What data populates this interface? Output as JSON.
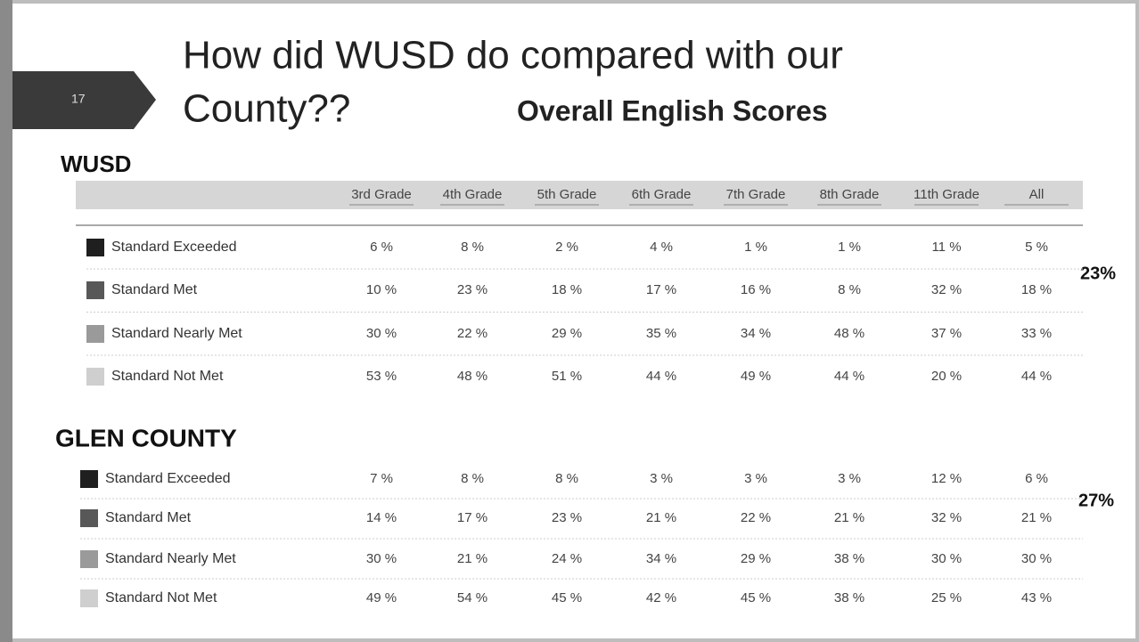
{
  "slide_number": "17",
  "title": "How did WUSD do compared with our County??",
  "subtitle": "Overall English Scores",
  "columns": [
    "3rd Grade",
    "4th Grade",
    "5th Grade",
    "6th Grade",
    "7th Grade",
    "8th Grade",
    "11th Grade",
    "All"
  ],
  "wusd": {
    "label": "WUSD",
    "note": "23%",
    "rows": [
      {
        "label": "Standard Exceeded",
        "values": [
          "6 %",
          "8 %",
          "2 %",
          "4 %",
          "1 %",
          "1 %",
          "11 %",
          "5 %"
        ]
      },
      {
        "label": "Standard Met",
        "values": [
          "10 %",
          "23 %",
          "18 %",
          "17 %",
          "16 %",
          "8 %",
          "32 %",
          "18 %"
        ]
      },
      {
        "label": "Standard Nearly Met",
        "values": [
          "30 %",
          "22 %",
          "29 %",
          "35 %",
          "34 %",
          "48 %",
          "37 %",
          "33 %"
        ]
      },
      {
        "label": "Standard Not Met",
        "values": [
          "53 %",
          "48 %",
          "51 %",
          "44 %",
          "49 %",
          "44 %",
          "20 %",
          "44 %"
        ]
      }
    ]
  },
  "glen": {
    "label": "GLEN COUNTY",
    "note": "27%",
    "rows": [
      {
        "label": "Standard Exceeded",
        "values": [
          "7 %",
          "8 %",
          "8 %",
          "3 %",
          "3 %",
          "3 %",
          "12 %",
          "6 %"
        ]
      },
      {
        "label": "Standard Met",
        "values": [
          "14 %",
          "17 %",
          "23 %",
          "21 %",
          "22 %",
          "21 %",
          "32 %",
          "21 %"
        ]
      },
      {
        "label": "Standard Nearly Met",
        "values": [
          "30 %",
          "21 %",
          "24 %",
          "34 %",
          "29 %",
          "38 %",
          "30 %",
          "30 %"
        ]
      },
      {
        "label": "Standard Not Met",
        "values": [
          "49 %",
          "54 %",
          "45 %",
          "42 %",
          "45 %",
          "38 %",
          "25 %",
          "43 %"
        ]
      }
    ]
  }
}
